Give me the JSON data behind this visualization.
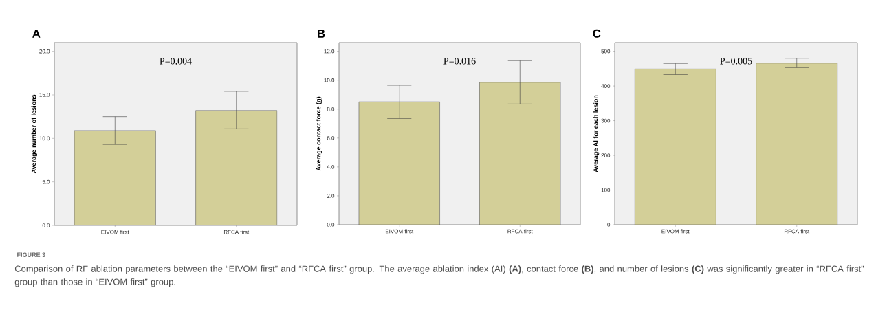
{
  "chart_data": [
    {
      "type": "bar",
      "title": "A",
      "ylabel": "Average number of lesions",
      "categories": [
        "EIVOM first",
        "RFCA first"
      ],
      "values": [
        10.9,
        13.2
      ],
      "errors": [
        [
          9.3,
          12.5
        ],
        [
          11.1,
          15.4
        ]
      ],
      "color": "#d3cf98",
      "ylim": [
        0,
        21
      ],
      "yticks": [
        {
          "value": 0,
          "label": "0.0"
        },
        {
          "value": 5,
          "label": "5.0"
        },
        {
          "value": 10,
          "label": "10.0"
        },
        {
          "value": 15,
          "label": "15.0"
        },
        {
          "value": 20,
          "label": "20.0"
        }
      ],
      "annotations": [
        "P=0.004",
        "FIGURE 3",
        "Comparison of RF ablation parameters between the “EIVOM first” and “RFCA first” group. The average ablation index (AI) **(A)**, contact force **(B)**, and number of lesions **(C)** was significantly greater in “RFCA first” group than those in “EIVOM first” group."
      ]
    },
    {
      "type": "bar",
      "title": "B",
      "ylabel": "Average contact force (g)",
      "categories": [
        "EIVOM first",
        "RFCA first"
      ],
      "values": [
        8.5,
        9.85
      ],
      "errors": [
        [
          7.35,
          9.65
        ],
        [
          8.35,
          11.35
        ]
      ],
      "color": "#d3cf98",
      "ylim": [
        0,
        12.6
      ],
      "yticks": [
        {
          "value": 0,
          "label": "0.0"
        },
        {
          "value": 2,
          "label": "2.0"
        },
        {
          "value": 4,
          "label": "4.0"
        },
        {
          "value": 6,
          "label": "6.0"
        },
        {
          "value": 8,
          "label": "8.0"
        },
        {
          "value": 10,
          "label": "10.0"
        },
        {
          "value": 12,
          "label": "12.0"
        }
      ],
      "annotations": [
        "P=0.016"
      ]
    },
    {
      "type": "bar",
      "title": "C",
      "ylabel": "Average AI for each lesion",
      "categories": [
        "EIVOM first",
        "RFCA first"
      ],
      "values": [
        449,
        466
      ],
      "errors": [
        [
          433,
          465
        ],
        [
          453,
          480
        ]
      ],
      "color": "#d3cf98",
      "ylim": [
        0,
        525
      ],
      "yticks": [
        0,
        100,
        200,
        300,
        400,
        500
      ],
      "annotations": [
        "P=0.005"
      ]
    }
  ]
}
